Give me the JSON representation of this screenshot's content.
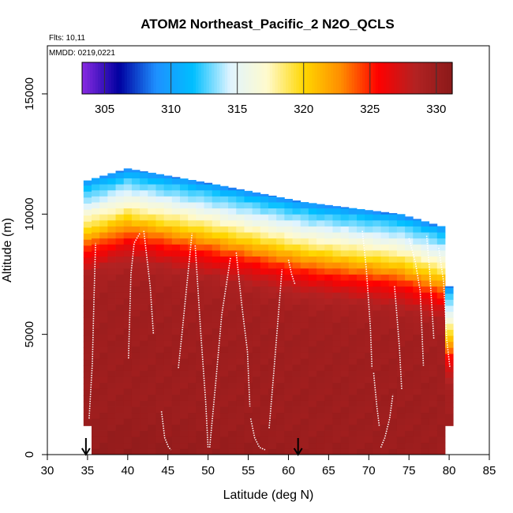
{
  "chart_data": {
    "type": "heatmap",
    "title": "ATOM2 Northeast_Pacific_2 N2O_QCLS",
    "flights_note": "Flts: 10,11",
    "dates_note": "MMDD: 0219,0221",
    "xlabel": "Latitude (deg N)",
    "ylabel": "Altitude (m)",
    "xlim": [
      30,
      85
    ],
    "ylim": [
      0,
      17000
    ],
    "xticks": [
      "30",
      "35",
      "40",
      "45",
      "50",
      "55",
      "60",
      "65",
      "70",
      "75",
      "80",
      "85"
    ],
    "yticks": [
      "0",
      "5000",
      "10000",
      "15000"
    ],
    "colorbar": {
      "range": [
        303.3,
        331.2
      ],
      "ticks": [
        "305",
        "310",
        "315",
        "320",
        "325",
        "330"
      ],
      "colors": [
        "#8a2be2",
        "#0000a0",
        "#1e90ff",
        "#00bfff",
        "#e0f4ff",
        "#fffacd",
        "#ffd700",
        "#ff8c00",
        "#ff0000",
        "#b22222",
        "#8b1a1a"
      ]
    },
    "lat_columns": [
      35,
      36,
      37,
      38,
      39,
      40,
      41,
      42,
      43,
      44,
      45,
      46,
      47,
      48,
      49,
      50,
      51,
      52,
      53,
      54,
      55,
      56,
      57,
      58,
      59,
      60,
      61,
      62,
      63,
      64,
      65,
      66,
      67,
      68,
      69,
      70,
      71,
      72,
      73,
      74,
      75,
      76,
      77,
      78,
      79,
      80
    ],
    "alt_profile": {
      "altitudes": [
        0,
        1000,
        2000,
        3000,
        4000,
        5000,
        6000,
        7000,
        7500,
        8000,
        8500,
        9000,
        9500,
        10000,
        10500,
        11000,
        11500,
        12000
      ],
      "values": [
        330.6,
        330.3,
        330.0,
        329.9,
        329.9,
        329.8,
        329.7,
        329.5,
        329.2,
        328.6,
        327.0,
        325.0,
        322.0,
        319.0,
        316.5,
        314.0,
        312.0,
        308.0
      ]
    },
    "data_top": [
      {
        "lat": 35,
        "alt": 11400
      },
      {
        "lat": 40,
        "alt": 11900
      },
      {
        "lat": 50,
        "alt": 11300
      },
      {
        "lat": 62,
        "alt": 10500
      },
      {
        "lat": 74,
        "alt": 10000
      },
      {
        "lat": 79,
        "alt": 9500
      },
      {
        "lat": 80,
        "alt": 7000
      }
    ],
    "surface_markers": [
      {
        "lat": 34.8,
        "label": "arrow"
      },
      {
        "lat": 61.2,
        "label": "arrow"
      }
    ],
    "flight_tracks": [
      {
        "lat": [
          35.2,
          35.6,
          35.8,
          36.0
        ],
        "alt": [
          1500,
          3800,
          6500,
          8800
        ]
      },
      {
        "lat": [
          40.1,
          40.4,
          40.8,
          41.5
        ],
        "alt": [
          4000,
          7500,
          8800,
          9200
        ]
      },
      {
        "lat": [
          42.0,
          42.8,
          43.2
        ],
        "alt": [
          9300,
          7000,
          5000
        ]
      },
      {
        "lat": [
          44.2,
          44.6,
          45.1,
          45.4
        ],
        "alt": [
          1800,
          700,
          300,
          200
        ]
      },
      {
        "lat": [
          46.3,
          46.8,
          47.4,
          48.0
        ],
        "alt": [
          3600,
          5200,
          7200,
          9200
        ]
      },
      {
        "lat": [
          48.4,
          49.1,
          49.7,
          50.0
        ],
        "alt": [
          8700,
          5000,
          2200,
          300
        ]
      },
      {
        "lat": [
          50.2,
          50.9,
          51.7,
          52.8
        ],
        "alt": [
          300,
          2800,
          5800,
          8200
        ]
      },
      {
        "lat": [
          53.5,
          54.2,
          54.9,
          55.2
        ],
        "alt": [
          8400,
          6200,
          4300,
          2000
        ]
      },
      {
        "lat": [
          55.3,
          55.8,
          56.4,
          57.1
        ],
        "alt": [
          1500,
          700,
          300,
          200
        ]
      },
      {
        "lat": [
          57.6,
          58.2,
          58.8,
          59.2
        ],
        "alt": [
          1100,
          3500,
          6000,
          7700
        ]
      },
      {
        "lat": [
          60.0,
          60.4,
          60.8
        ],
        "alt": [
          8100,
          7500,
          7100
        ]
      },
      {
        "lat": [
          69.2,
          69.7,
          70.2,
          70.4
        ],
        "alt": [
          9300,
          7700,
          5300,
          3600
        ]
      },
      {
        "lat": [
          70.6,
          71.0,
          71.3
        ],
        "alt": [
          3400,
          2000,
          1200
        ]
      },
      {
        "lat": [
          71.5,
          72.0,
          72.6,
          73.0
        ],
        "alt": [
          300,
          700,
          1500,
          2500
        ]
      },
      {
        "lat": [
          73.2,
          73.8,
          74.1
        ],
        "alt": [
          7000,
          4500,
          2700
        ]
      },
      {
        "lat": [
          75.0,
          75.8,
          76.4,
          76.8
        ],
        "alt": [
          9000,
          8000,
          6800,
          3700
        ]
      },
      {
        "lat": [
          77.2,
          77.6,
          78.1
        ],
        "alt": [
          9100,
          7500,
          4800
        ]
      },
      {
        "lat": [
          78.7,
          79.3,
          79.7,
          80.1
        ],
        "alt": [
          8600,
          7200,
          4800,
          3600
        ]
      }
    ],
    "grid": false
  }
}
